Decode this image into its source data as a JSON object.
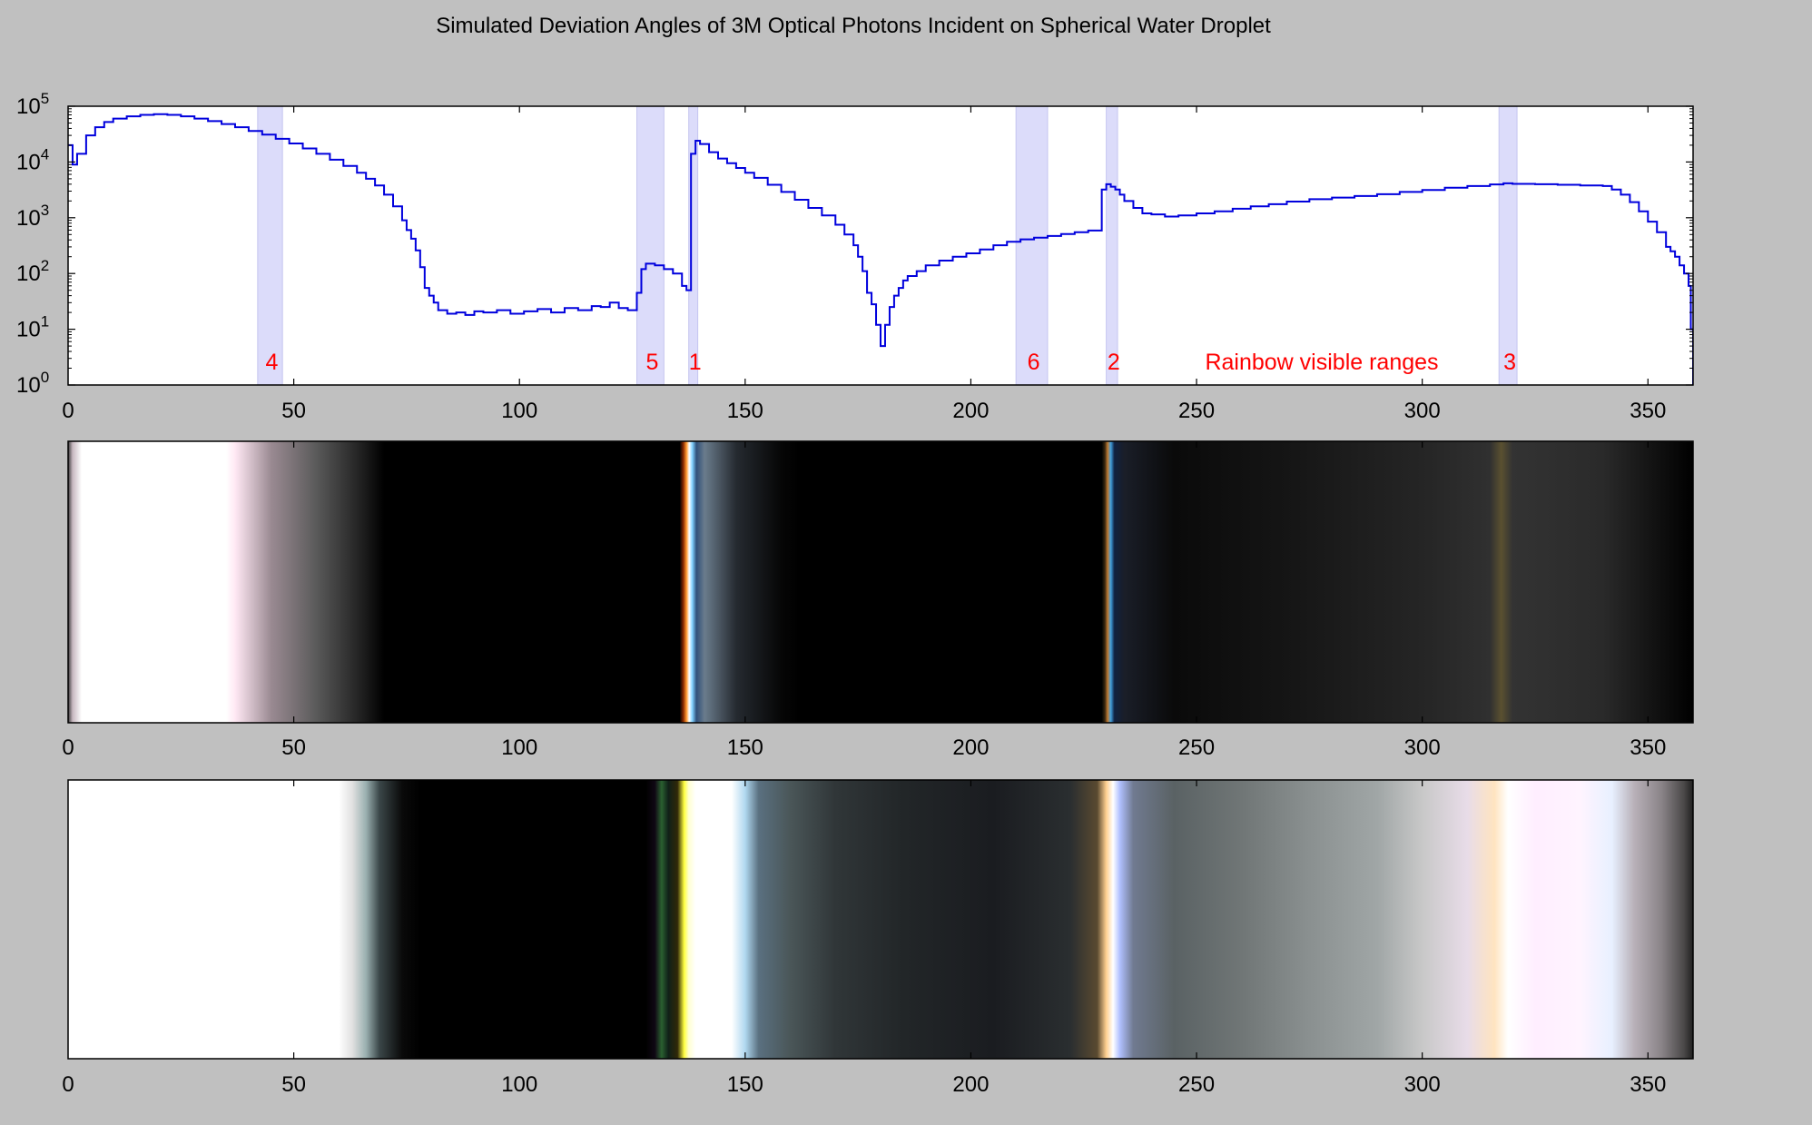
{
  "title": "Simulated Deviation Angles of 3M Optical Photons Incident on Spherical Water Droplet",
  "annotation": "Rainbow visible ranges",
  "chart_data": [
    {
      "type": "line",
      "step": true,
      "yscale": "log",
      "xlim": [
        0,
        360
      ],
      "ylim": [
        1,
        100000
      ],
      "xticks": [
        0,
        50,
        100,
        150,
        200,
        250,
        300,
        350
      ],
      "yticks": [
        {
          "value": 1,
          "base": "10",
          "exp": "0"
        },
        {
          "value": 10,
          "base": "10",
          "exp": "1"
        },
        {
          "value": 100,
          "base": "10",
          "exp": "2"
        },
        {
          "value": 1000,
          "base": "10",
          "exp": "3"
        },
        {
          "value": 10000,
          "base": "10",
          "exp": "4"
        },
        {
          "value": 100000,
          "base": "10",
          "exp": "5"
        }
      ],
      "line_color": "#0000dd",
      "band_color": "#dcdcfa",
      "bands": [
        {
          "label": "4",
          "x0": 42,
          "x1": 47.5
        },
        {
          "label": "5",
          "x0": 126,
          "x1": 132
        },
        {
          "label": "1",
          "x0": 137.5,
          "x1": 139.5
        },
        {
          "label": "6",
          "x0": 210,
          "x1": 217
        },
        {
          "label": "2",
          "x0": 230,
          "x1": 232.5
        },
        {
          "label": "3",
          "x0": 317,
          "x1": 321
        }
      ],
      "x": [
        0,
        1,
        2,
        4,
        6,
        8,
        10,
        13,
        16,
        19,
        22,
        25,
        28,
        31,
        34,
        37,
        40,
        43,
        46,
        49,
        52,
        55,
        58,
        61,
        64,
        66,
        68,
        70,
        72,
        74,
        75,
        76,
        77,
        78,
        79,
        80,
        81,
        82,
        84,
        86,
        88,
        90,
        92,
        95,
        98,
        101,
        104,
        107,
        110,
        113,
        116,
        118,
        120,
        122,
        124,
        125,
        126,
        127,
        128,
        130,
        132,
        134,
        136,
        137,
        138,
        139,
        140,
        142,
        144,
        146,
        148,
        150,
        152,
        155,
        158,
        161,
        164,
        167,
        170,
        172,
        174,
        175,
        176,
        177,
        178,
        179,
        180,
        181,
        182,
        183,
        184,
        185,
        186,
        188,
        190,
        193,
        196,
        199,
        202,
        205,
        208,
        211,
        214,
        217,
        220,
        223,
        226,
        229,
        230,
        231,
        232,
        233,
        234,
        236,
        238,
        240,
        243,
        246,
        250,
        254,
        258,
        262,
        266,
        270,
        275,
        280,
        285,
        290,
        295,
        300,
        305,
        310,
        315,
        318,
        320,
        325,
        330,
        335,
        340,
        342,
        344,
        346,
        348,
        350,
        352,
        354,
        355,
        356,
        357,
        358,
        359,
        359.5,
        360
      ],
      "y": [
        20000,
        9000,
        14000,
        30000,
        42000,
        52000,
        60000,
        66000,
        70000,
        72000,
        70000,
        66000,
        60000,
        54000,
        48000,
        42000,
        36000,
        31000,
        26000,
        21500,
        17500,
        14000,
        11000,
        8500,
        6400,
        5000,
        3800,
        2600,
        1600,
        900,
        600,
        420,
        260,
        130,
        55,
        40,
        30,
        22,
        19,
        20,
        18,
        21,
        20,
        22,
        19,
        21,
        23,
        20,
        24,
        22,
        26,
        25,
        30,
        24,
        22,
        22,
        45,
        120,
        150,
        140,
        120,
        100,
        60,
        50,
        14000,
        24000,
        21000,
        15000,
        11500,
        9500,
        7800,
        6400,
        5200,
        3900,
        2900,
        2100,
        1500,
        1100,
        750,
        500,
        320,
        200,
        110,
        45,
        28,
        12,
        5,
        12,
        25,
        40,
        55,
        75,
        90,
        110,
        140,
        170,
        200,
        230,
        270,
        320,
        370,
        410,
        440,
        470,
        510,
        550,
        590,
        3200,
        4000,
        3600,
        3200,
        2600,
        2000,
        1500,
        1200,
        1150,
        1050,
        1100,
        1200,
        1300,
        1450,
        1600,
        1750,
        1950,
        2150,
        2300,
        2450,
        2650,
        2900,
        3150,
        3450,
        3700,
        3950,
        4150,
        4050,
        4000,
        3900,
        3800,
        3700,
        3200,
        2600,
        1900,
        1300,
        850,
        550,
        300,
        250,
        200,
        140,
        100,
        60,
        10,
        1
      ]
    },
    {
      "type": "heatmap",
      "xlim": [
        0,
        360
      ],
      "xticks": [
        0,
        50,
        100,
        150,
        200,
        250,
        300,
        350
      ],
      "stops": [
        {
          "x": 0,
          "color": "#3a3a3a"
        },
        {
          "x": 1,
          "color": "#c8b8c0"
        },
        {
          "x": 3,
          "color": "#ffffff"
        },
        {
          "x": 35,
          "color": "#ffffff"
        },
        {
          "x": 37,
          "color": "#ffe8f4"
        },
        {
          "x": 45,
          "color": "#9a8a92"
        },
        {
          "x": 55,
          "color": "#5a5a5a"
        },
        {
          "x": 65,
          "color": "#202020"
        },
        {
          "x": 70,
          "color": "#000000"
        },
        {
          "x": 135.5,
          "color": "#000000"
        },
        {
          "x": 136.3,
          "color": "#8a2a00"
        },
        {
          "x": 137,
          "color": "#ff9a30"
        },
        {
          "x": 137.6,
          "color": "#ffffff"
        },
        {
          "x": 138.3,
          "color": "#80d0ff"
        },
        {
          "x": 139.2,
          "color": "#30507a"
        },
        {
          "x": 141,
          "color": "#6a7c8c"
        },
        {
          "x": 148,
          "color": "#252a30"
        },
        {
          "x": 158,
          "color": "#060606"
        },
        {
          "x": 162,
          "color": "#000000"
        },
        {
          "x": 229,
          "color": "#000000"
        },
        {
          "x": 229.7,
          "color": "#3a2810"
        },
        {
          "x": 230.3,
          "color": "#c07a30"
        },
        {
          "x": 231,
          "color": "#40a0e0"
        },
        {
          "x": 231.8,
          "color": "#102040"
        },
        {
          "x": 234,
          "color": "#1a1e28"
        },
        {
          "x": 245,
          "color": "#0a0a0a"
        },
        {
          "x": 270,
          "color": "#151515"
        },
        {
          "x": 300,
          "color": "#252525"
        },
        {
          "x": 315,
          "color": "#303030"
        },
        {
          "x": 317.5,
          "color": "#5a5030"
        },
        {
          "x": 320,
          "color": "#333333"
        },
        {
          "x": 340,
          "color": "#2a2a2a"
        },
        {
          "x": 350,
          "color": "#151515"
        },
        {
          "x": 360,
          "color": "#000000"
        }
      ]
    },
    {
      "type": "heatmap",
      "xlim": [
        0,
        360
      ],
      "xticks": [
        0,
        50,
        100,
        150,
        200,
        250,
        300,
        350
      ],
      "stops": [
        {
          "x": 0,
          "color": "#ffffff"
        },
        {
          "x": 60,
          "color": "#ffffff"
        },
        {
          "x": 63,
          "color": "#e0e0e0"
        },
        {
          "x": 66,
          "color": "#9ab0b0"
        },
        {
          "x": 69,
          "color": "#3a4648"
        },
        {
          "x": 74,
          "color": "#0a0a0a"
        },
        {
          "x": 78,
          "color": "#000000"
        },
        {
          "x": 128,
          "color": "#000000"
        },
        {
          "x": 130,
          "color": "#100814"
        },
        {
          "x": 131.5,
          "color": "#2a6030"
        },
        {
          "x": 133,
          "color": "#102018"
        },
        {
          "x": 135,
          "color": "#302808"
        },
        {
          "x": 136.5,
          "color": "#ffff40"
        },
        {
          "x": 137.5,
          "color": "#ffffd0"
        },
        {
          "x": 139,
          "color": "#ffffff"
        },
        {
          "x": 147,
          "color": "#ffffff"
        },
        {
          "x": 150,
          "color": "#b0d8f0"
        },
        {
          "x": 153,
          "color": "#5a7080"
        },
        {
          "x": 160,
          "color": "#4a5658"
        },
        {
          "x": 170,
          "color": "#303638"
        },
        {
          "x": 185,
          "color": "#222628"
        },
        {
          "x": 205,
          "color": "#1a1c20"
        },
        {
          "x": 222,
          "color": "#2a2e30"
        },
        {
          "x": 228,
          "color": "#5a4a30"
        },
        {
          "x": 230,
          "color": "#ffd090"
        },
        {
          "x": 231.5,
          "color": "#ffffff"
        },
        {
          "x": 233,
          "color": "#b0c0ff"
        },
        {
          "x": 236,
          "color": "#707a90"
        },
        {
          "x": 245,
          "color": "#5a6264"
        },
        {
          "x": 260,
          "color": "#707676"
        },
        {
          "x": 275,
          "color": "#8a9090"
        },
        {
          "x": 290,
          "color": "#a0a6a6"
        },
        {
          "x": 300,
          "color": "#c8c8c8"
        },
        {
          "x": 310,
          "color": "#e8dce8"
        },
        {
          "x": 316,
          "color": "#ffe4c0"
        },
        {
          "x": 319,
          "color": "#ffffff"
        },
        {
          "x": 325,
          "color": "#ffeeff"
        },
        {
          "x": 335,
          "color": "#fff4ff"
        },
        {
          "x": 342,
          "color": "#e8f0ff"
        },
        {
          "x": 347,
          "color": "#b8b0b8"
        },
        {
          "x": 353,
          "color": "#8a8488"
        },
        {
          "x": 358,
          "color": "#4a4848"
        },
        {
          "x": 360,
          "color": "#202020"
        }
      ]
    }
  ]
}
